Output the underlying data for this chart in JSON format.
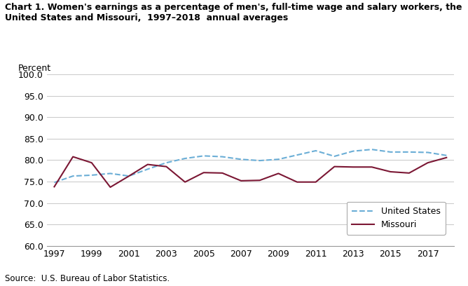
{
  "title": "Chart 1. Women's earnings as a percentage of men's, full-time wage and salary workers, the\nUnited States and Missouri,  1997–2018  annual averages",
  "ylabel": "Percent",
  "source": "Source:  U.S. Bureau of Labor Statistics.",
  "years": [
    1997,
    1998,
    1999,
    2000,
    2001,
    2002,
    2003,
    2004,
    2005,
    2006,
    2007,
    2008,
    2009,
    2010,
    2011,
    2012,
    2013,
    2014,
    2015,
    2016,
    2017,
    2018
  ],
  "us_values": [
    74.8,
    76.3,
    76.5,
    76.9,
    76.3,
    77.9,
    79.4,
    80.4,
    81.0,
    80.8,
    80.2,
    79.9,
    80.2,
    81.2,
    82.2,
    80.9,
    82.1,
    82.5,
    81.9,
    81.9,
    81.8,
    81.1
  ],
  "mo_values": [
    73.8,
    80.8,
    79.4,
    73.7,
    76.3,
    79.0,
    78.5,
    74.9,
    77.1,
    77.0,
    75.2,
    75.3,
    76.9,
    74.9,
    74.9,
    78.5,
    78.4,
    78.4,
    77.3,
    77.0,
    79.4,
    80.6
  ],
  "us_color": "#6baed6",
  "mo_color": "#7b1734",
  "ylim": [
    60.0,
    100.0
  ],
  "yticks": [
    60.0,
    65.0,
    70.0,
    75.0,
    80.0,
    85.0,
    90.0,
    95.0,
    100.0
  ],
  "xtick_years": [
    1997,
    1999,
    2001,
    2003,
    2005,
    2007,
    2009,
    2011,
    2013,
    2015,
    2017
  ],
  "background_color": "#ffffff",
  "plot_bg_color": "#ffffff",
  "legend_us": "United States",
  "legend_mo": "Missouri",
  "xlim_left": 1996.6,
  "xlim_right": 2018.4
}
